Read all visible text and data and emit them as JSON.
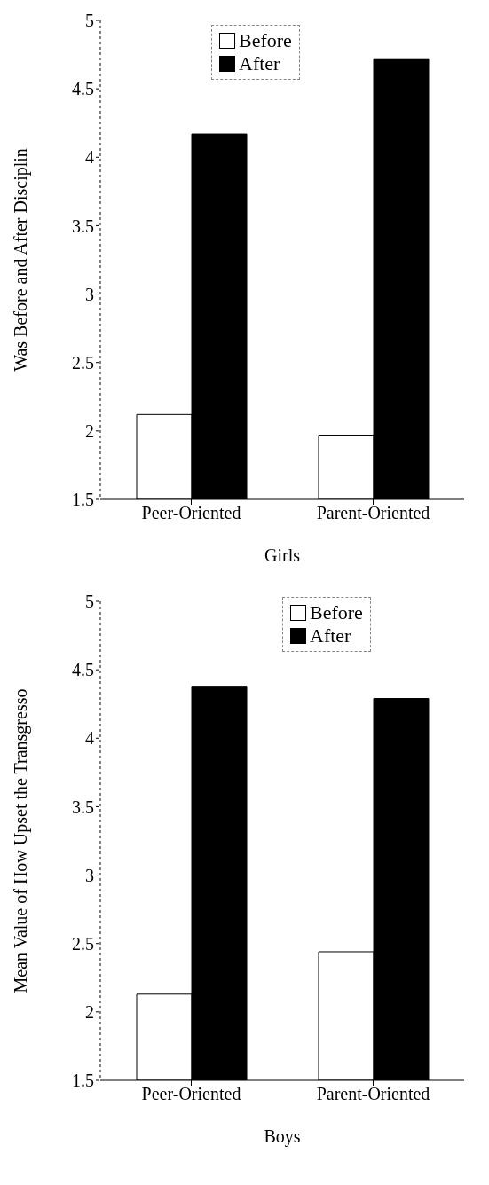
{
  "chart_data": [
    {
      "type": "bar",
      "xlabel": "Girls",
      "ylabel": "Was Before and After Disciplin",
      "categories": [
        "Peer-Oriented",
        "Parent-Oriented"
      ],
      "series": [
        {
          "name": "Before",
          "color": "#ffffff",
          "values": [
            2.12,
            1.97
          ]
        },
        {
          "name": "After",
          "color": "#000000",
          "values": [
            4.17,
            4.72
          ]
        }
      ],
      "ylim": [
        1.5,
        5
      ],
      "yticks": [
        1.5,
        2,
        2.5,
        3,
        3.5,
        4,
        4.5,
        5
      ],
      "grid": false,
      "legend": "top"
    },
    {
      "type": "bar",
      "xlabel": "Boys",
      "ylabel": "Mean Value of How Upset the Transgresso",
      "categories": [
        "Peer-Oriented",
        "Parent-Oriented"
      ],
      "series": [
        {
          "name": "Before",
          "color": "#ffffff",
          "values": [
            2.13,
            2.44
          ]
        },
        {
          "name": "After",
          "color": "#000000",
          "values": [
            4.38,
            4.29
          ]
        }
      ],
      "ylim": [
        1.5,
        5
      ],
      "yticks": [
        1.5,
        2,
        2.5,
        3,
        3.5,
        4,
        4.5,
        5
      ],
      "grid": false,
      "legend": "top right"
    }
  ]
}
